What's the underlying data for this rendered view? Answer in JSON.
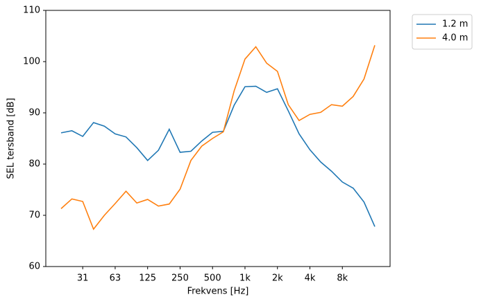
{
  "chart_data": {
    "type": "line",
    "xlabel": "Frekvens [Hz]",
    "ylabel": "SEL tersband [dB]",
    "categories": [
      null,
      null,
      "31",
      null,
      null,
      "63",
      null,
      null,
      "125",
      null,
      null,
      "250",
      null,
      null,
      "500",
      null,
      null,
      "1k",
      null,
      null,
      "2k",
      null,
      null,
      "4k",
      null,
      null,
      "8k",
      null,
      null,
      null
    ],
    "series": [
      {
        "name": "1.2 m",
        "color": "#1f77b4",
        "values": [
          86.1,
          86.5,
          85.4,
          88.1,
          87.4,
          85.9,
          85.3,
          83.2,
          80.7,
          82.7,
          86.8,
          82.3,
          82.5,
          84.5,
          86.2,
          86.4,
          91.5,
          95.1,
          95.2,
          94.0,
          94.7,
          90.4,
          85.9,
          82.8,
          80.4,
          78.6,
          76.5,
          75.3,
          72.6,
          67.8
        ]
      },
      {
        "name": "4.0 m",
        "color": "#ff7f0e",
        "values": [
          71.3,
          73.2,
          72.7,
          67.3,
          70.0,
          72.3,
          74.7,
          72.4,
          73.1,
          71.8,
          72.2,
          75.1,
          80.7,
          83.5,
          85.0,
          86.3,
          94.3,
          100.5,
          102.9,
          99.7,
          98.1,
          91.6,
          88.5,
          89.7,
          90.1,
          91.6,
          91.3,
          93.2,
          96.6,
          103.2
        ]
      }
    ],
    "ylim": [
      60,
      110
    ],
    "yticks": [
      60,
      70,
      80,
      90,
      100,
      110
    ],
    "grid": false,
    "legend": "outside-right"
  }
}
